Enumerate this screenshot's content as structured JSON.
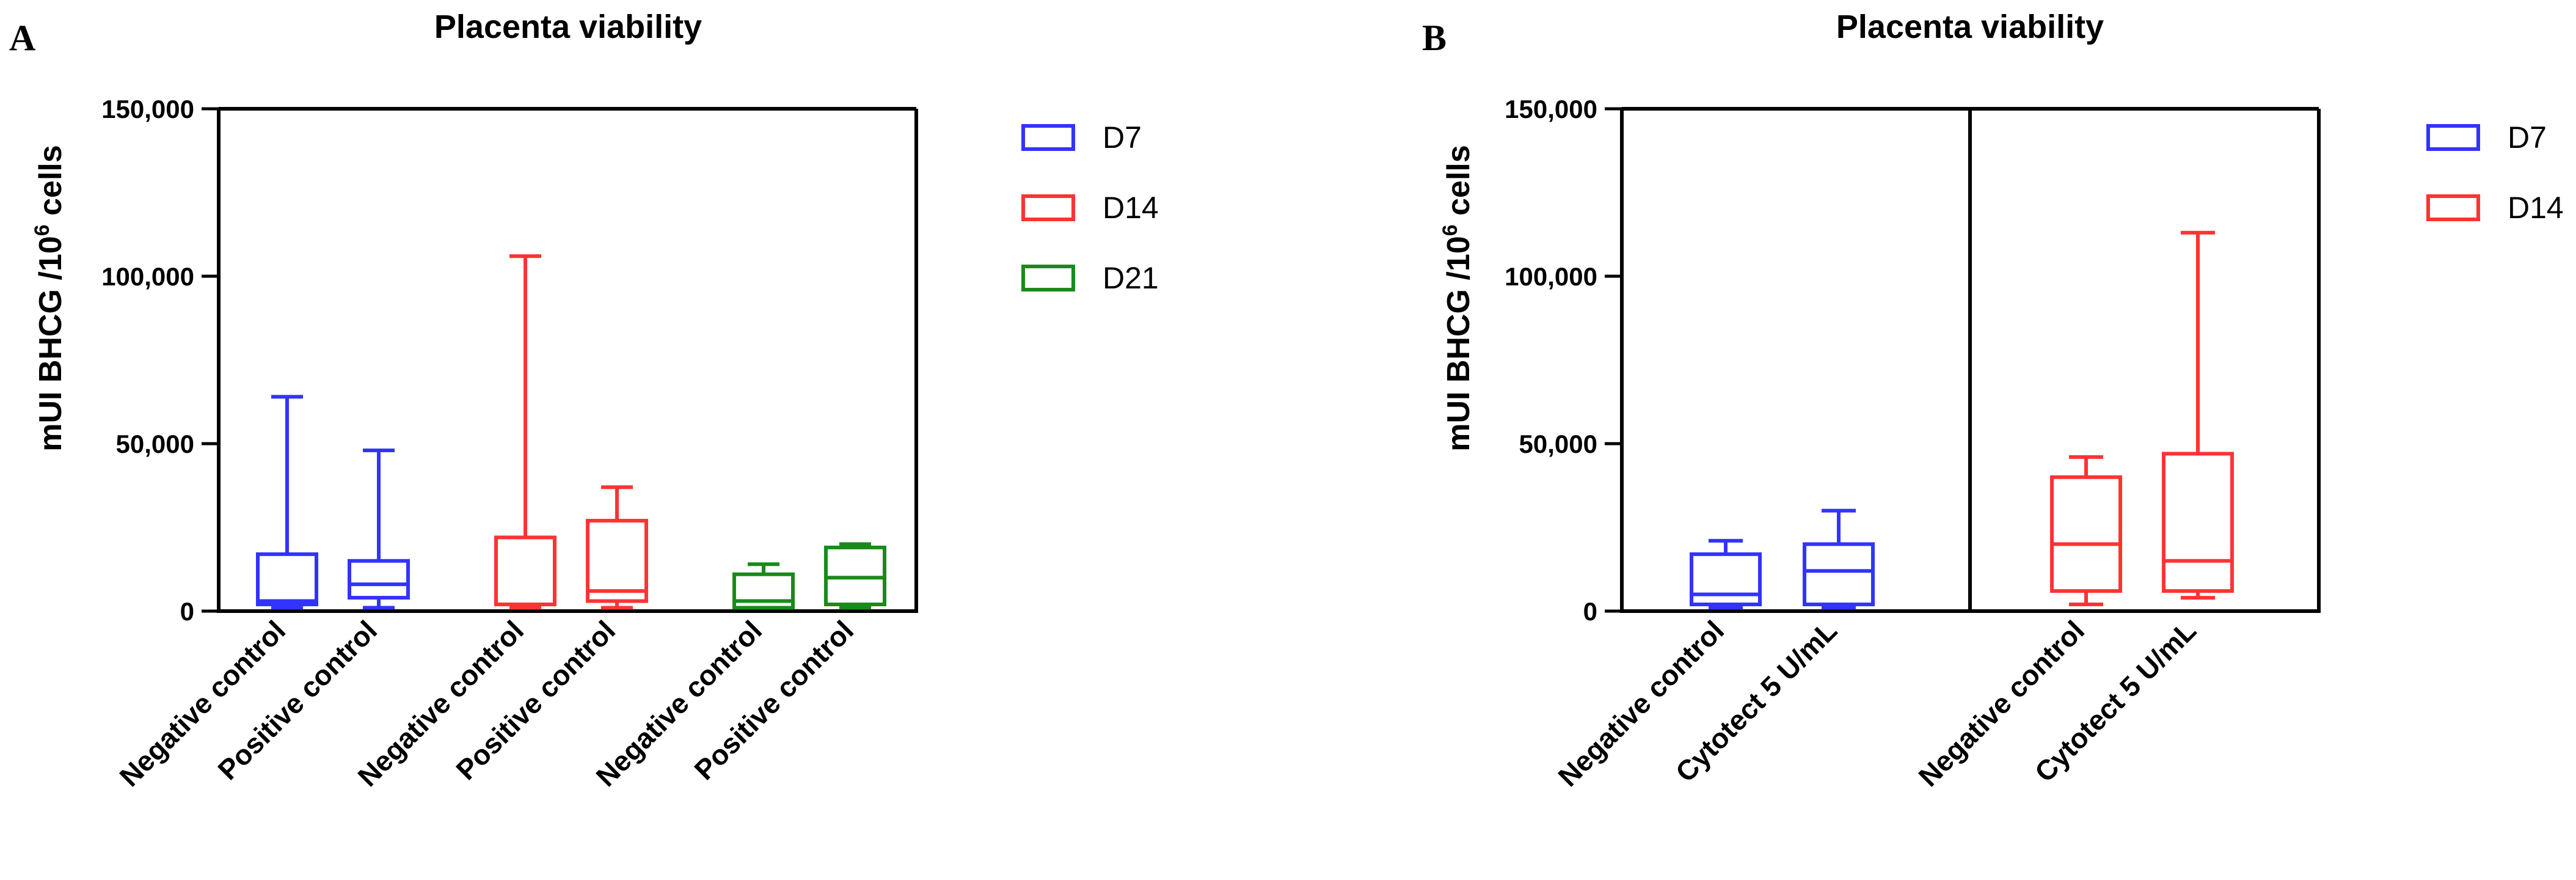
{
  "colors": {
    "D7": "#3333ff",
    "D14": "#ff3333",
    "D21": "#1a8a1a",
    "axis": "#000000"
  },
  "chart_data": [
    {
      "panel_label": "A",
      "type": "boxplot",
      "title": "Placenta viability",
      "ylabel_prefix": "mUI BHCG /10",
      "ylabel_sup": "6",
      "ylabel_suffix": " cells",
      "ylim": [
        0,
        150000
      ],
      "yticks": [
        0,
        50000,
        100000,
        150000
      ],
      "ytick_labels": [
        "0",
        "50,000",
        "100,000",
        "150,000"
      ],
      "legend": [
        "D7",
        "D14",
        "D21"
      ],
      "groups": [
        {
          "series": "D7",
          "boxes": [
            {
              "category": "Negative control",
              "min": 1000,
              "q1": 2000,
              "median": 3000,
              "q3": 17000,
              "max": 64000
            },
            {
              "category": "Positive control",
              "min": 1000,
              "q1": 4000,
              "median": 8000,
              "q3": 15000,
              "max": 48000
            }
          ]
        },
        {
          "series": "D14",
          "boxes": [
            {
              "category": "Negative control",
              "min": 1000,
              "q1": 2000,
              "median": 2000,
              "q3": 22000,
              "max": 106000
            },
            {
              "category": "Positive control",
              "min": 1000,
              "q1": 3000,
              "median": 6000,
              "q3": 27000,
              "max": 37000
            }
          ]
        },
        {
          "series": "D21",
          "boxes": [
            {
              "category": "Negative control",
              "min": 1000,
              "q1": 1000,
              "median": 3000,
              "q3": 11000,
              "max": 14000
            },
            {
              "category": "Positive control",
              "min": 1000,
              "q1": 2000,
              "median": 10000,
              "q3": 19000,
              "max": 20000
            }
          ]
        }
      ]
    },
    {
      "panel_label": "B",
      "type": "boxplot",
      "title": "Placenta viability",
      "ylabel_prefix": "mUI BHCG /10",
      "ylabel_sup": "6",
      "ylabel_suffix": " cells",
      "ylim": [
        0,
        150000
      ],
      "yticks": [
        0,
        50000,
        100000,
        150000
      ],
      "ytick_labels": [
        "0",
        "50,000",
        "100,000",
        "150,000"
      ],
      "legend": [
        "D7",
        "D14"
      ],
      "groups": [
        {
          "series": "D7",
          "boxes": [
            {
              "category": "Negative control",
              "min": 1000,
              "q1": 2000,
              "median": 5000,
              "q3": 17000,
              "max": 21000
            },
            {
              "category": "Cytotect 5 U/mL",
              "min": 1000,
              "q1": 2000,
              "median": 12000,
              "q3": 20000,
              "max": 30000
            }
          ]
        },
        {
          "series": "D14",
          "boxes": [
            {
              "category": "Negative control",
              "min": 2000,
              "q1": 6000,
              "median": 20000,
              "q3": 40000,
              "max": 46000
            },
            {
              "category": "Cytotect 5 U/mL",
              "min": 4000,
              "q1": 6000,
              "median": 15000,
              "q3": 47000,
              "max": 113000
            }
          ]
        }
      ]
    }
  ]
}
